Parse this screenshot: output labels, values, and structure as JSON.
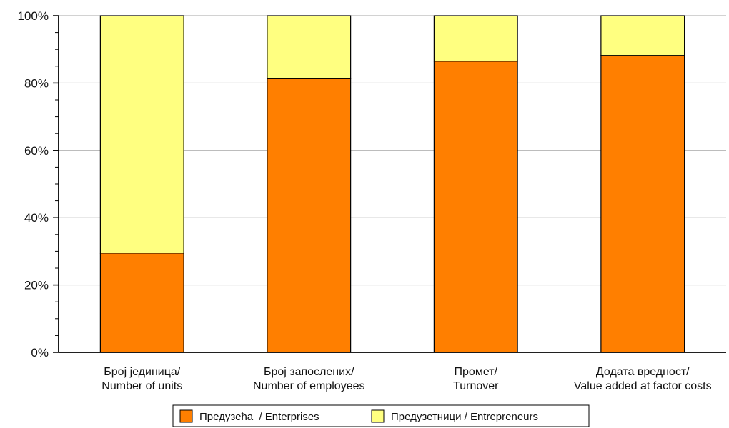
{
  "chart_data": {
    "type": "bar",
    "stacked": true,
    "percent": true,
    "categories": [
      [
        "Број јединица/",
        "Number of units"
      ],
      [
        "Број запослених/",
        "Number of employees"
      ],
      [
        "Промет/",
        "Turnover"
      ],
      [
        "Додата вредност/",
        "Value added at factor costs"
      ]
    ],
    "series": [
      {
        "name": "Предузећа  / Enterprises",
        "values": [
          29.5,
          81.3,
          86.5,
          88.2
        ],
        "color": "#FF7F00"
      },
      {
        "name": "Предузетници / Entrepreneurs",
        "values": [
          70.5,
          18.7,
          13.5,
          11.8
        ],
        "color": "#FFFF80"
      }
    ],
    "ylim": [
      0,
      100
    ],
    "y_ticks": [
      "0%",
      "20%",
      "40%",
      "60%",
      "80%",
      "100%"
    ],
    "grid": true,
    "legend_position": "bottom"
  }
}
